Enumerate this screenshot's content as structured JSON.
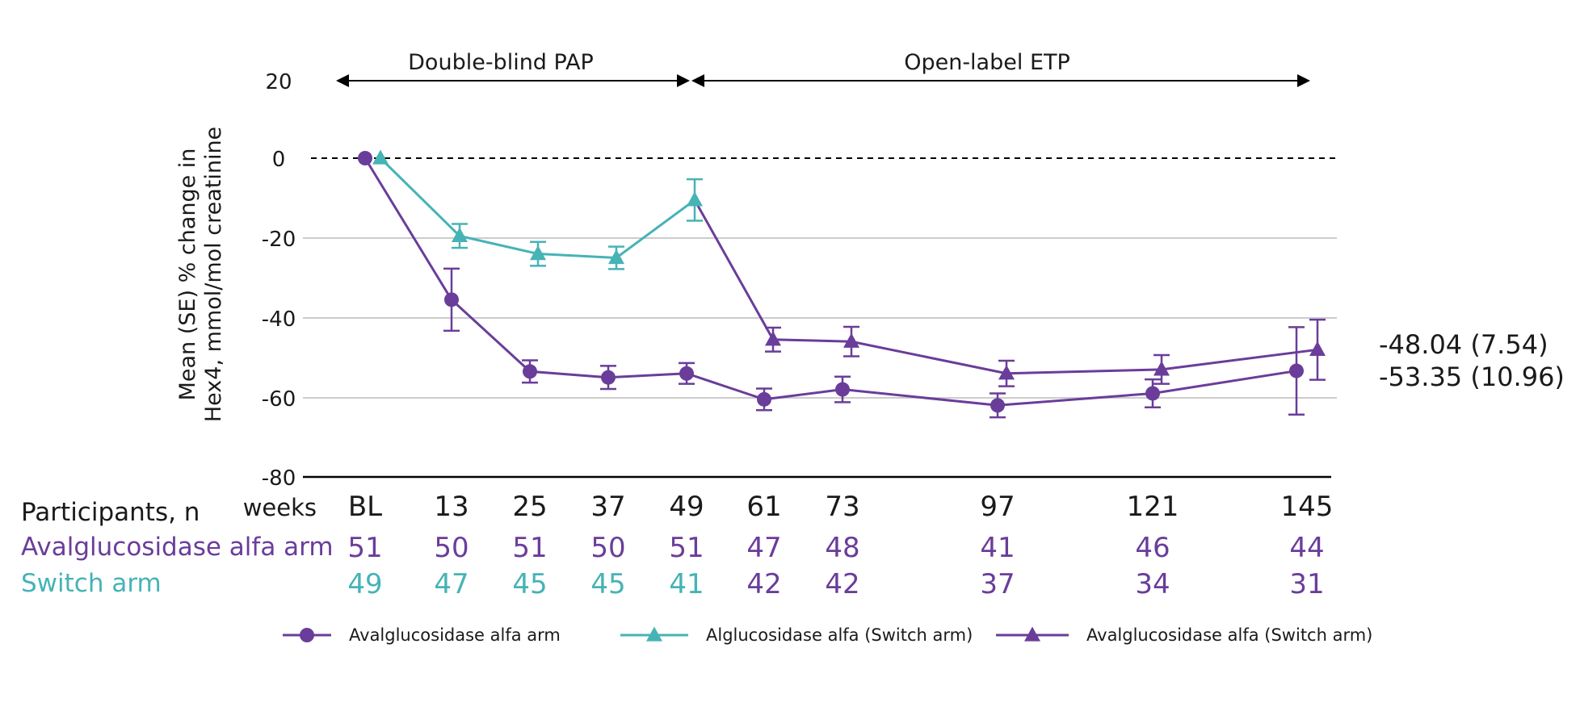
{
  "colors": {
    "purple": "#6a3d9a",
    "teal": "#46b3b6",
    "axis": "#000000",
    "grid": "#cccccc"
  },
  "chart_data": {
    "type": "line",
    "ylabel_line1": "Mean (SE) % change in",
    "ylabel_line2": "Hex4, mmol/mol creatinine",
    "ylim": [
      -80,
      20
    ],
    "yticks": [
      20,
      0,
      -20,
      -40,
      -60,
      -80
    ],
    "ytick_labels": [
      "20",
      "0",
      "-20",
      "-40",
      "-60",
      "-80"
    ],
    "x_unit": "weeks",
    "x": [
      0,
      13,
      25,
      37,
      49,
      61,
      73,
      97,
      121,
      145
    ],
    "x_tick_labels": [
      "BL",
      "13",
      "25",
      "37",
      "49",
      "61",
      "73",
      "97",
      "121",
      "145"
    ],
    "grid": "horizontal at -20, -40, -60",
    "reference_line": {
      "y": 0,
      "style": "dashed"
    },
    "phases": [
      {
        "label": "Double-blind PAP",
        "from": 0,
        "to": 49
      },
      {
        "label": "Open-label ETP",
        "from": 49,
        "to": 145
      }
    ],
    "series": [
      {
        "name": "Avalglucosidase alfa arm",
        "marker": "circle",
        "color": "#6a3d9a",
        "x": [
          0,
          13,
          25,
          37,
          49,
          61,
          73,
          97,
          121,
          145
        ],
        "y": [
          0,
          -35.5,
          -53.5,
          -55,
          -54,
          -60.5,
          -58,
          -62,
          -59,
          -53.35
        ],
        "se": [
          0,
          7.8,
          2.8,
          2.9,
          2.6,
          2.7,
          3.2,
          3.0,
          3.5,
          10.96
        ]
      },
      {
        "name": "Alglucosidase alfa (Switch arm)",
        "marker": "triangle",
        "color": "#46b3b6",
        "x": [
          0,
          13,
          25,
          37,
          49
        ],
        "y": [
          0,
          -19.5,
          -24,
          -25,
          -10.5
        ],
        "se": [
          0,
          3.0,
          3.0,
          2.8,
          5.2
        ]
      },
      {
        "name": "Avalglucosidase alfa (Switch arm)",
        "marker": "triangle",
        "color": "#6a3d9a",
        "x": [
          49,
          61,
          73,
          97,
          121,
          145
        ],
        "y": [
          -10.5,
          -45.5,
          -46,
          -54,
          -53,
          -48.04
        ],
        "se": [
          0,
          3.0,
          3.7,
          3.2,
          3.6,
          7.54
        ]
      }
    ],
    "end_labels": [
      "-48.04 (7.54)",
      "-53.35 (10.96)"
    ],
    "legend_position": "bottom"
  },
  "participants": {
    "title": "Participants, n",
    "weeks_label": "weeks",
    "rows": [
      {
        "label": "Avalglucosidase alfa arm",
        "color": "#6a3d9a",
        "values": [
          "51",
          "50",
          "51",
          "50",
          "51",
          "47",
          "48",
          "41",
          "46",
          "44"
        ],
        "value_colors": [
          "#6a3d9a",
          "#6a3d9a",
          "#6a3d9a",
          "#6a3d9a",
          "#6a3d9a",
          "#6a3d9a",
          "#6a3d9a",
          "#6a3d9a",
          "#6a3d9a",
          "#6a3d9a"
        ]
      },
      {
        "label": "Switch arm",
        "color": "#46b3b6",
        "values": [
          "49",
          "47",
          "45",
          "45",
          "41",
          "42",
          "42",
          "37",
          "34",
          "31"
        ],
        "value_colors": [
          "#46b3b6",
          "#46b3b6",
          "#46b3b6",
          "#46b3b6",
          "#46b3b6",
          "#6a3d9a",
          "#6a3d9a",
          "#6a3d9a",
          "#6a3d9a",
          "#6a3d9a"
        ]
      }
    ]
  }
}
